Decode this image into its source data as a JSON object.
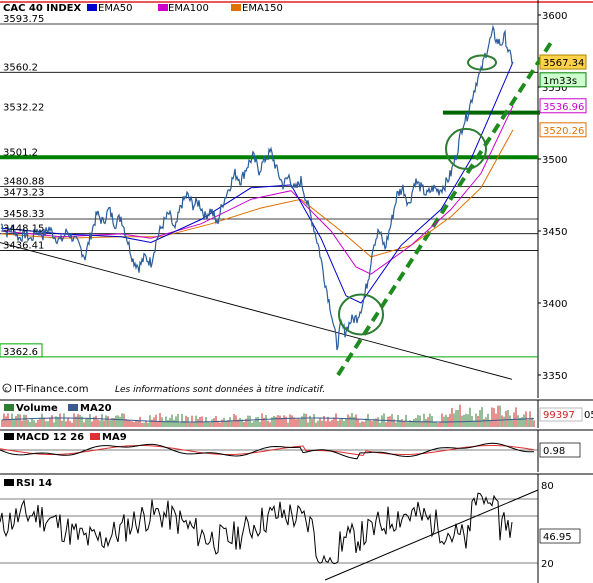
{
  "chart_data": [
    {
      "type": "line",
      "panel": "price",
      "title": "CAC 40 INDEX",
      "legend": [
        {
          "label": "EMA50",
          "color": "#0000cc"
        },
        {
          "label": "EMA100",
          "color": "#cc00cc"
        },
        {
          "label": "EMA150",
          "color": "#e07000"
        }
      ],
      "y_ticks": [
        3600,
        3550,
        3500,
        3450,
        3400,
        3350
      ],
      "ylim": [
        3345,
        3605
      ],
      "levels": [
        {
          "label": "3593.75",
          "value": 3593.75,
          "color": "#000000"
        },
        {
          "label": "3560.2",
          "value": 3560.2,
          "color": "#000000"
        },
        {
          "label": "3532.22",
          "value": 3532.22,
          "color": "#006600"
        },
        {
          "label": "3501.2",
          "value": 3501.2,
          "color": "#008000"
        },
        {
          "label": "3480.88",
          "value": 3480.88,
          "color": "#000000"
        },
        {
          "label": "3473.23",
          "value": 3473.23,
          "color": "#000000"
        },
        {
          "label": "3458.33",
          "value": 3458.33,
          "color": "#000000"
        },
        {
          "label": "3448.15",
          "value": 3448.15,
          "color": "#000000"
        },
        {
          "label": "3436.41",
          "value": 3436.41,
          "color": "#000000"
        },
        {
          "label": "3362.6",
          "value": 3362.6,
          "color": "#00aa00"
        }
      ],
      "price_path": [
        [
          0,
          3455
        ],
        [
          6,
          3449
        ],
        [
          12,
          3452
        ],
        [
          18,
          3445
        ],
        [
          24,
          3448
        ],
        [
          30,
          3444
        ],
        [
          36,
          3451
        ],
        [
          42,
          3447
        ],
        [
          48,
          3452
        ],
        [
          54,
          3446
        ],
        [
          60,
          3443
        ],
        [
          66,
          3450
        ],
        [
          72,
          3445
        ],
        [
          78,
          3440
        ],
        [
          84,
          3432
        ],
        [
          90,
          3448
        ],
        [
          96,
          3462
        ],
        [
          102,
          3456
        ],
        [
          108,
          3465
        ],
        [
          114,
          3455
        ],
        [
          120,
          3460
        ],
        [
          126,
          3445
        ],
        [
          132,
          3430
        ],
        [
          138,
          3425
        ],
        [
          144,
          3432
        ],
        [
          150,
          3428
        ],
        [
          156,
          3445
        ],
        [
          162,
          3455
        ],
        [
          168,
          3462
        ],
        [
          174,
          3450
        ],
        [
          180,
          3468
        ],
        [
          186,
          3475
        ],
        [
          192,
          3468
        ],
        [
          198,
          3470
        ],
        [
          204,
          3460
        ],
        [
          210,
          3465
        ],
        [
          216,
          3455
        ],
        [
          222,
          3470
        ],
        [
          228,
          3480
        ],
        [
          234,
          3490
        ],
        [
          240,
          3485
        ],
        [
          246,
          3495
        ],
        [
          252,
          3502
        ],
        [
          258,
          3492
        ],
        [
          264,
          3500
        ],
        [
          270,
          3505
        ],
        [
          276,
          3492
        ],
        [
          282,
          3482
        ],
        [
          288,
          3488
        ],
        [
          294,
          3478
        ],
        [
          300,
          3485
        ],
        [
          306,
          3470
        ],
        [
          312,
          3455
        ],
        [
          318,
          3438
        ],
        [
          324,
          3415
        ],
        [
          330,
          3395
        ],
        [
          336,
          3370
        ],
        [
          340,
          3385
        ],
        [
          344,
          3380
        ],
        [
          350,
          3388
        ],
        [
          356,
          3390
        ],
        [
          362,
          3400
        ],
        [
          368,
          3420
        ],
        [
          372,
          3440
        ],
        [
          378,
          3450
        ],
        [
          384,
          3438
        ],
        [
          390,
          3455
        ],
        [
          396,
          3475
        ],
        [
          402,
          3480
        ],
        [
          408,
          3468
        ],
        [
          414,
          3485
        ],
        [
          420,
          3480
        ],
        [
          426,
          3475
        ],
        [
          432,
          3480
        ],
        [
          438,
          3478
        ],
        [
          444,
          3482
        ],
        [
          450,
          3490
        ],
        [
          456,
          3505
        ],
        [
          462,
          3525
        ],
        [
          466,
          3530
        ],
        [
          472,
          3545
        ],
        [
          476,
          3555
        ],
        [
          480,
          3560
        ],
        [
          484,
          3572
        ],
        [
          488,
          3580
        ],
        [
          492,
          3588
        ],
        [
          496,
          3582
        ],
        [
          500,
          3580
        ],
        [
          504,
          3585
        ],
        [
          508,
          3573
        ],
        [
          512,
          3567.34
        ]
      ],
      "ema50": [
        [
          0,
          3452
        ],
        [
          60,
          3448
        ],
        [
          120,
          3446
        ],
        [
          150,
          3442
        ],
        [
          200,
          3458
        ],
        [
          250,
          3480
        ],
        [
          290,
          3482
        ],
        [
          320,
          3445
        ],
        [
          345,
          3405
        ],
        [
          360,
          3400
        ],
        [
          400,
          3440
        ],
        [
          440,
          3465
        ],
        [
          470,
          3500
        ],
        [
          495,
          3540
        ],
        [
          512,
          3567.34
        ]
      ],
      "ema100": [
        [
          0,
          3450
        ],
        [
          60,
          3446
        ],
        [
          120,
          3448
        ],
        [
          150,
          3445
        ],
        [
          200,
          3455
        ],
        [
          250,
          3472
        ],
        [
          290,
          3478
        ],
        [
          330,
          3450
        ],
        [
          355,
          3425
        ],
        [
          370,
          3420
        ],
        [
          410,
          3440
        ],
        [
          450,
          3465
        ],
        [
          480,
          3490
        ],
        [
          512,
          3536.96
        ]
      ],
      "ema150": [
        [
          0,
          3448
        ],
        [
          60,
          3445
        ],
        [
          120,
          3446
        ],
        [
          160,
          3446
        ],
        [
          210,
          3455
        ],
        [
          260,
          3466
        ],
        [
          300,
          3472
        ],
        [
          340,
          3450
        ],
        [
          370,
          3432
        ],
        [
          410,
          3440
        ],
        [
          450,
          3460
        ],
        [
          480,
          3480
        ],
        [
          512,
          3520.26
        ]
      ],
      "last_values": [
        {
          "label": "3567.34",
          "role": "price",
          "bg": "#ffd24a",
          "border": "#aa8800"
        },
        {
          "label": "1m33s",
          "role": "timer",
          "bg": "#ccffcc",
          "border": "#008000"
        },
        {
          "label": "3536.96",
          "role": "ema100",
          "bg": "#ffffff",
          "border": "#cc00cc",
          "color": "#cc00cc"
        },
        {
          "label": "3520.26",
          "role": "ema150",
          "bg": "#ffffff",
          "border": "#e07000",
          "color": "#e07000"
        }
      ],
      "watermark": "IT-Finance.com",
      "disclaimer": "Les informations sont données à titre indicatif."
    },
    {
      "type": "bar",
      "panel": "volume",
      "legend": [
        {
          "label": "Volume",
          "color": "#2e7d32"
        },
        {
          "label": "MA20",
          "color": "#3a5a8c"
        }
      ],
      "last_value": "99397",
      "last_value_extra": "05"
    },
    {
      "type": "line",
      "panel": "macd",
      "legend": [
        {
          "label": "MACD 12 26",
          "color": "#000000"
        },
        {
          "label": "MA9",
          "color": "#e03030"
        }
      ],
      "last_value": "0.98"
    },
    {
      "type": "line",
      "panel": "rsi",
      "legend": [
        {
          "label": "RSI 14",
          "color": "#000000"
        }
      ],
      "y_ticks": [
        80,
        20
      ],
      "ylim": [
        0,
        100
      ],
      "last_value": "46.95"
    }
  ]
}
